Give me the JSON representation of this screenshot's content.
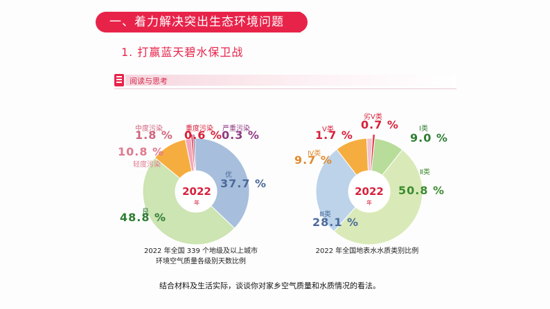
{
  "banner": {
    "title": "一、着力解决突出生态环境问题"
  },
  "subtitle": "1. 打赢蓝天碧水保卫战",
  "read_section": {
    "label": "阅读与思考"
  },
  "charts_text": {
    "air_year": "2022",
    "air_year_unit": "年",
    "air_caption_line1": "2022 年全国 339 个地级及以上城市",
    "air_caption_line2": "环境空气质量各级别天数比例",
    "water_year": "2022",
    "water_year_unit": "年",
    "water_caption": "2022 年全国地表水水质类别比例"
  },
  "question": "结合材料及生活实际，谈谈你对家乡空气质量和水质情况的看法。",
  "chart_data": [
    {
      "type": "pie",
      "categories": [
        "优",
        "良",
        "轻度污染",
        "中度污染",
        "重度污染",
        "严重污染"
      ],
      "values": [
        37.7,
        48.8,
        10.8,
        1.8,
        0.6,
        0.3
      ],
      "value_labels": [
        "37.7 %",
        "48.8 %",
        "10.8 %",
        "1.8 %",
        "0.6 %",
        "0.3 %"
      ],
      "colors": [
        "#a7bfdc",
        "#cde4b3",
        "#f6ad3f",
        "#f3a6b9",
        "#e63946",
        "#8e4a8e"
      ],
      "label_colors": [
        "#4b6a9b",
        "#2e7d32",
        "#e07a8e",
        "#d0657d",
        "#d7203b",
        "#8e3a82"
      ]
    },
    {
      "type": "pie",
      "categories": [
        "Ⅰ类",
        "Ⅱ类",
        "Ⅲ类",
        "Ⅳ类",
        "Ⅴ类",
        "劣Ⅴ类"
      ],
      "values": [
        9.0,
        50.8,
        28.1,
        9.7,
        1.7,
        0.7
      ],
      "value_labels": [
        "9.0 %",
        "50.8 %",
        "28.1 %",
        "9.7 %",
        "1.7 %",
        "0.7 %"
      ],
      "colors": [
        "#b8dc9a",
        "#d9eab8",
        "#bcd3ea",
        "#f6ad3f",
        "#f0c3cf",
        "#e63946"
      ],
      "label_colors": [
        "#2e7d32",
        "#3b8b2e",
        "#4b6a9b",
        "#e28a2c",
        "#d7203b",
        "#d7203b"
      ]
    }
  ]
}
